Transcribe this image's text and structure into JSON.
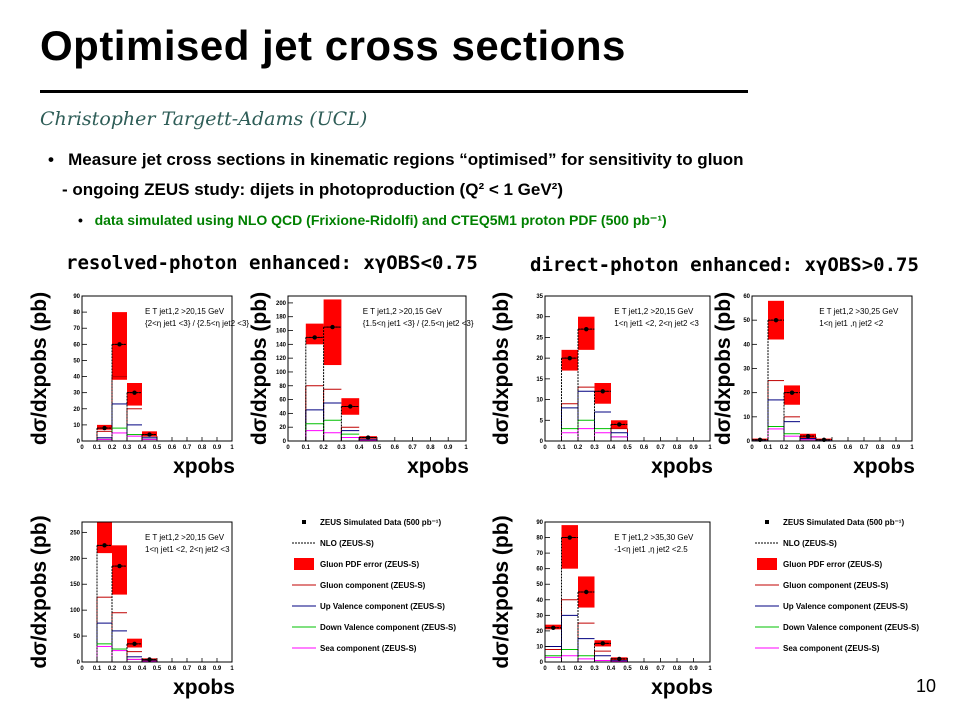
{
  "title": "Optimised jet cross sections",
  "author": "Christopher Targett-Adams (UCL)",
  "bullets": {
    "b1_marker": "•",
    "b1": "Measure jet cross sections in kinematic regions “optimised” for sensitivity to gluon",
    "b2": "- ongoing ZEUS study: dijets in photoproduction (Q² < 1 GeV²)",
    "b3_marker": "•",
    "b3": "data simulated using NLO QCD (Frixione-Ridolfi) and CTEQ5M1 proton PDF (500 pb⁻¹)"
  },
  "headings": {
    "resolved": "resolved-photon enhanced: xγOBS<0.75",
    "direct": "direct-photon enhanced: xγOBS>0.75"
  },
  "page_number": "10",
  "colors": {
    "gluon_error_band": "#ff0000",
    "gluon": "#c00000",
    "up_valence": "#000080",
    "down_valence": "#00c000",
    "sea": "#ff00ff",
    "author": "#2e5d57",
    "bullet3": "#008000"
  },
  "legend": [
    {
      "label": "ZEUS Simulated Data (500 pb⁻¹)",
      "style": "marker"
    },
    {
      "label": "NLO (ZEUS-S)",
      "style": "dashed"
    },
    {
      "label": "Gluon PDF error (ZEUS-S)",
      "style": "band"
    },
    {
      "label": "Gluon component (ZEUS-S)",
      "style": "gluon"
    },
    {
      "label": "Up Valence component (ZEUS-S)",
      "style": "up"
    },
    {
      "label": "Down Valence component (ZEUS-S)",
      "style": "down"
    },
    {
      "label": "Sea component (ZEUS-S)",
      "style": "sea"
    }
  ],
  "chart_data": [
    {
      "type": "bar",
      "panel": "resolved-top-left",
      "ylabel": "dσ/dxpobs (pb)",
      "xlabel": "xpobs",
      "xlim": [
        0,
        1
      ],
      "ylim": [
        0,
        90
      ],
      "yticks": [
        0,
        10,
        20,
        30,
        40,
        50,
        60,
        70,
        80,
        90
      ],
      "cuts": [
        "E T jet1,2 >20,15 GeV",
        "{2<η jet1 <3} / {2.5<η jet2 <3}"
      ],
      "bins": [
        [
          0.1,
          0.2
        ],
        [
          0.2,
          0.3
        ],
        [
          0.3,
          0.4
        ],
        [
          0.4,
          0.5
        ]
      ],
      "data": [
        8,
        60,
        30,
        4
      ],
      "band": [
        [
          7,
          10
        ],
        [
          38,
          80
        ],
        [
          22,
          36
        ],
        [
          3,
          6
        ]
      ],
      "nlo": [
        8,
        60,
        30,
        4
      ],
      "gluon": [
        6,
        40,
        20,
        3
      ],
      "up": [
        2,
        23,
        10,
        2
      ],
      "down": [
        1,
        8,
        4,
        1
      ],
      "sea": [
        1,
        5,
        3,
        1
      ]
    },
    {
      "type": "bar",
      "panel": "resolved-top-right",
      "ylabel": "dσ/dxpobs (pb)",
      "xlabel": "xpobs",
      "xlim": [
        0,
        1
      ],
      "ylim": [
        0,
        210
      ],
      "yticks": [
        0,
        20,
        40,
        60,
        80,
        100,
        120,
        140,
        160,
        180,
        200
      ],
      "cuts": [
        "E T jet1,2 >20,15 GeV",
        "{1.5<η jet1 <3} / {2.5<η jet2 <3}"
      ],
      "bins": [
        [
          0.1,
          0.2
        ],
        [
          0.2,
          0.3
        ],
        [
          0.3,
          0.4
        ],
        [
          0.4,
          0.5
        ]
      ],
      "data": [
        150,
        165,
        50,
        5
      ],
      "band": [
        [
          140,
          170
        ],
        [
          110,
          205
        ],
        [
          38,
          62
        ],
        [
          4,
          7
        ]
      ],
      "nlo": [
        150,
        165,
        50,
        5
      ],
      "gluon": [
        80,
        75,
        20,
        3
      ],
      "up": [
        45,
        55,
        15,
        2
      ],
      "down": [
        25,
        30,
        10,
        1
      ],
      "sea": [
        15,
        12,
        5,
        1
      ]
    },
    {
      "type": "bar",
      "panel": "direct-top-left",
      "ylabel": "dσ/dxpobs (pb)",
      "xlabel": "xpobs",
      "xlim": [
        0,
        1
      ],
      "ylim": [
        0,
        35
      ],
      "yticks": [
        0,
        5,
        10,
        15,
        20,
        25,
        30,
        35
      ],
      "cuts": [
        "E T jet1,2 >20,15 GeV",
        "1<η jet1 <2, 2<η jet2 <3"
      ],
      "bins": [
        [
          0.1,
          0.2
        ],
        [
          0.2,
          0.3
        ],
        [
          0.3,
          0.4
        ],
        [
          0.4,
          0.5
        ]
      ],
      "data": [
        20,
        27,
        12,
        4
      ],
      "band": [
        [
          17,
          22
        ],
        [
          22,
          30
        ],
        [
          9,
          14
        ],
        [
          3,
          5
        ]
      ],
      "nlo": [
        20,
        27,
        12,
        4
      ],
      "gluon": [
        9,
        13,
        7,
        3
      ],
      "up": [
        8,
        12,
        7,
        2
      ],
      "down": [
        3,
        5,
        3,
        1
      ],
      "sea": [
        2,
        3,
        2,
        1
      ]
    },
    {
      "type": "bar",
      "panel": "direct-top-right",
      "ylabel": "dσ/dxpobs (pb)",
      "xlabel": "xpobs",
      "xlim": [
        0,
        1
      ],
      "ylim": [
        0,
        60
      ],
      "yticks": [
        0,
        10,
        20,
        30,
        40,
        50,
        60
      ],
      "cuts": [
        "E T jet1,2 >30,25 GeV",
        "1<η jet1 ,η jet2 <2"
      ],
      "bins": [
        [
          0.0,
          0.1
        ],
        [
          0.1,
          0.2
        ],
        [
          0.2,
          0.3
        ],
        [
          0.3,
          0.4
        ],
        [
          0.4,
          0.5
        ]
      ],
      "data": [
        0.5,
        50,
        20,
        2,
        0.5
      ],
      "band": [
        [
          0,
          1
        ],
        [
          42,
          58
        ],
        [
          15,
          23
        ],
        [
          1,
          3
        ],
        [
          0,
          1
        ]
      ],
      "nlo": [
        0.5,
        50,
        20,
        2,
        0.5
      ],
      "gluon": [
        0.2,
        25,
        10,
        1,
        0.2
      ],
      "up": [
        0.2,
        17,
        8,
        1,
        0.2
      ],
      "down": [
        0.1,
        6,
        3,
        0.5,
        0.1
      ],
      "sea": [
        0.1,
        5,
        2,
        0.5,
        0.1
      ]
    },
    {
      "type": "bar",
      "panel": "resolved-bottom",
      "ylabel": "dσ/dxpobs (pb)",
      "xlabel": "xpobs",
      "xlim": [
        0,
        1
      ],
      "ylim": [
        0,
        270
      ],
      "yticks": [
        0,
        50,
        100,
        150,
        200,
        250
      ],
      "cuts": [
        "E T jet1,2 >20,15 GeV",
        "1<η jet1 <2, 2<η jet2 <3"
      ],
      "bins": [
        [
          0.1,
          0.2
        ],
        [
          0.2,
          0.3
        ],
        [
          0.3,
          0.4
        ],
        [
          0.4,
          0.5
        ]
      ],
      "data": [
        225,
        185,
        35,
        5
      ],
      "band": [
        [
          210,
          270
        ],
        [
          130,
          225
        ],
        [
          28,
          45
        ],
        [
          3,
          7
        ]
      ],
      "nlo": [
        225,
        185,
        35,
        5
      ],
      "gluon": [
        125,
        95,
        20,
        3
      ],
      "up": [
        75,
        60,
        10,
        2
      ],
      "down": [
        35,
        25,
        5,
        1
      ],
      "sea": [
        30,
        22,
        5,
        1
      ]
    },
    {
      "type": "bar",
      "panel": "direct-bottom",
      "ylabel": "dσ/dxpobs (pb)",
      "xlabel": "xpobs",
      "xlim": [
        0,
        1
      ],
      "ylim": [
        0,
        90
      ],
      "yticks": [
        0,
        10,
        20,
        30,
        40,
        50,
        60,
        70,
        80,
        90
      ],
      "cuts": [
        "E T jet1,2 >35,30 GeV",
        "-1<η jet1 ,η jet2 <2.5"
      ],
      "bins": [
        [
          0.0,
          0.1
        ],
        [
          0.1,
          0.2
        ],
        [
          0.2,
          0.3
        ],
        [
          0.3,
          0.4
        ],
        [
          0.4,
          0.5
        ]
      ],
      "data": [
        22,
        80,
        45,
        12,
        2
      ],
      "band": [
        [
          21,
          24
        ],
        [
          60,
          88
        ],
        [
          35,
          55
        ],
        [
          10,
          14
        ],
        [
          1,
          3
        ]
      ],
      "nlo": [
        22,
        80,
        45,
        12,
        2
      ],
      "gluon": [
        8,
        40,
        25,
        7,
        1
      ],
      "up": [
        10,
        30,
        15,
        4,
        1
      ],
      "down": [
        4,
        8,
        4,
        1,
        0.5
      ],
      "sea": [
        3,
        4,
        2,
        1,
        0.5
      ]
    }
  ]
}
